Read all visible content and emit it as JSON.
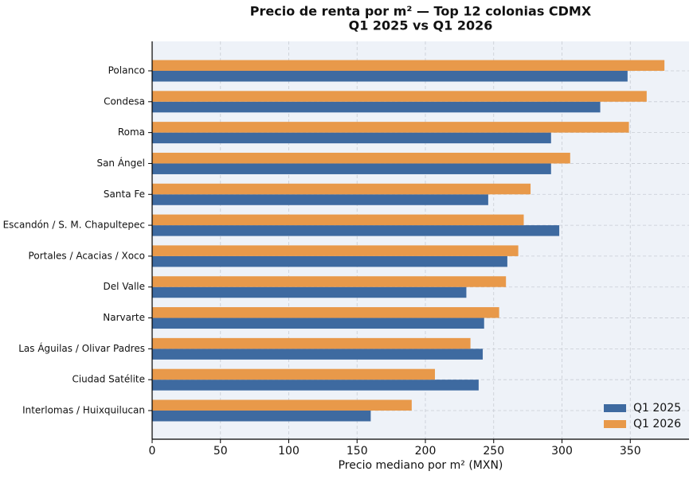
{
  "chart_data": {
    "type": "barh",
    "title": "Precio de renta por m² — Top 12 colonias CDMX",
    "subtitle": "Q1 2025 vs Q1 2026",
    "x_label": "Precio mediano por m² (MXN)",
    "categories": [
      "Polanco",
      "Condesa",
      "Roma",
      "San Ángel",
      "Santa Fe",
      "Escandón / S. M. Chapultepec",
      "Portales / Acacias / Xoco",
      "Del Valle",
      "Narvarte",
      "Las Águilas / Olivar Padres",
      "Ciudad Satélite",
      "Interlomas / Huixquilucan"
    ],
    "series": [
      {
        "name": "Q1 2025",
        "color": "#3e6aa0",
        "values": [
          348,
          328,
          292,
          292,
          246,
          298,
          260,
          230,
          243,
          242,
          239,
          160
        ]
      },
      {
        "name": "Q1 2026",
        "color": "#e8994a",
        "values": [
          375,
          362,
          349,
          306,
          277,
          272,
          268,
          259,
          254,
          233,
          207,
          190
        ]
      }
    ],
    "xlim": [
      0,
      393
    ],
    "xticks": [
      0,
      50,
      100,
      150,
      200,
      250,
      300,
      350
    ],
    "grid": true,
    "legend": "lower right"
  }
}
